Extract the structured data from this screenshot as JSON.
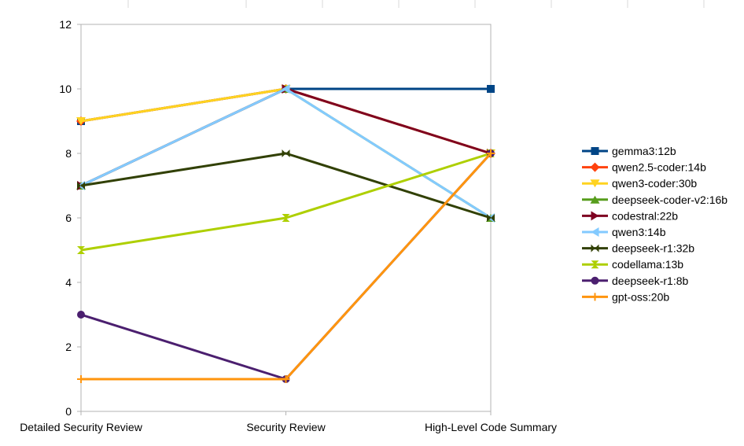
{
  "chart_data": {
    "type": "line",
    "title": "",
    "xlabel": "",
    "ylabel": "",
    "categories": [
      "Detailed Security Review",
      "Security Review",
      "High-Level Code Summary"
    ],
    "ylim": [
      0,
      12
    ],
    "yticks": [
      0,
      2,
      4,
      6,
      8,
      10,
      12
    ],
    "grid": "off",
    "legend_position": "right",
    "series": [
      {
        "name": "gemma3:12b",
        "values": [
          9,
          10,
          10
        ],
        "color": "#004586",
        "marker": "square"
      },
      {
        "name": "qwen2.5-coder:14b",
        "values": [
          9,
          10,
          8
        ],
        "color": "#ff420e",
        "marker": "diamond"
      },
      {
        "name": "qwen3-coder:30b",
        "values": [
          9,
          10,
          8
        ],
        "color": "#ffd320",
        "marker": "triangle-down"
      },
      {
        "name": "deepseek-coder-v2:16b",
        "values": [
          7,
          10,
          6
        ],
        "color": "#579d1c",
        "marker": "triangle-up"
      },
      {
        "name": "codestral:22b",
        "values": [
          7,
          10,
          8
        ],
        "color": "#7e0021",
        "marker": "triangle-right"
      },
      {
        "name": "qwen3:14b",
        "values": [
          7,
          10,
          6
        ],
        "color": "#83caff",
        "marker": "triangle-left"
      },
      {
        "name": "deepseek-r1:32b",
        "values": [
          7,
          8,
          6
        ],
        "color": "#314004",
        "marker": "bowtie"
      },
      {
        "name": "codellama:13b",
        "values": [
          5,
          6,
          8
        ],
        "color": "#aecf00",
        "marker": "hourglass"
      },
      {
        "name": "deepseek-r1:8b",
        "values": [
          3,
          1,
          8
        ],
        "color": "#4b1f6f",
        "marker": "circle"
      },
      {
        "name": "gpt-oss:20b",
        "values": [
          1,
          1,
          8
        ],
        "color": "#ff950e",
        "marker": "plus"
      }
    ]
  }
}
